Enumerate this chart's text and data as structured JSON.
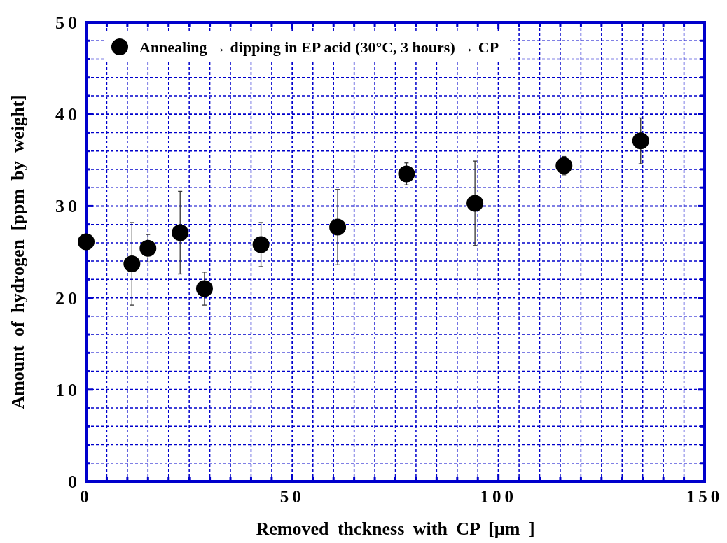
{
  "chart_data": {
    "type": "scatter",
    "xlabel": "Removed thckness with CP [µm ]",
    "ylabel": "Amount of hydrogen [ppm by weight]",
    "xlim": [
      0,
      150
    ],
    "ylim": [
      0,
      50
    ],
    "xticks": [
      0,
      {
        "value": 5,
        "label": null
      },
      {
        "value": 10,
        "label": null
      },
      {
        "value": 15,
        "label": null
      },
      {
        "value": 20,
        "label": null
      },
      {
        "value": 25,
        "label": null
      },
      {
        "value": 30,
        "label": null
      },
      {
        "value": 35,
        "label": null
      },
      {
        "value": 40,
        "label": null
      },
      {
        "value": 45,
        "label": null
      },
      50,
      {
        "value": 55,
        "label": null
      },
      {
        "value": 60,
        "label": null
      },
      {
        "value": 65,
        "label": null
      },
      {
        "value": 70,
        "label": null
      },
      {
        "value": 75,
        "label": null
      },
      {
        "value": 80,
        "label": null
      },
      {
        "value": 85,
        "label": null
      },
      {
        "value": 90,
        "label": null
      },
      {
        "value": 95,
        "label": null
      },
      100,
      {
        "value": 105,
        "label": null
      },
      {
        "value": 110,
        "label": null
      },
      {
        "value": 115,
        "label": null
      },
      {
        "value": 120,
        "label": null
      },
      {
        "value": 125,
        "label": null
      },
      {
        "value": 130,
        "label": null
      },
      {
        "value": 135,
        "label": null
      },
      {
        "value": 140,
        "label": null
      },
      {
        "value": 145,
        "label": null
      },
      150
    ],
    "yticks": [
      0,
      {
        "value": 2,
        "label": null
      },
      {
        "value": 4,
        "label": null
      },
      {
        "value": 6,
        "label": null
      },
      {
        "value": 8,
        "label": null
      },
      10,
      {
        "value": 12,
        "label": null
      },
      {
        "value": 14,
        "label": null
      },
      {
        "value": 16,
        "label": null
      },
      {
        "value": 18,
        "label": null
      },
      20,
      {
        "value": 22,
        "label": null
      },
      {
        "value": 24,
        "label": null
      },
      {
        "value": 26,
        "label": null
      },
      {
        "value": 28,
        "label": null
      },
      30,
      {
        "value": 32,
        "label": null
      },
      {
        "value": 34,
        "label": null
      },
      {
        "value": 36,
        "label": null
      },
      {
        "value": 38,
        "label": null
      },
      40,
      {
        "value": 42,
        "label": null
      },
      {
        "value": 44,
        "label": null
      },
      {
        "value": 46,
        "label": null
      },
      {
        "value": 48,
        "label": null
      },
      50
    ],
    "grid": true,
    "legend": "top left",
    "marker": "circle",
    "series": [
      {
        "name": "Annealing → dipping in EP acid (30°C, 3 hours) → CP",
        "color": "#000000",
        "x": [
          0,
          11.1,
          15,
          22.8,
          28.7,
          42.4,
          61,
          77.7,
          94.3,
          115.9,
          134.5
        ],
        "values": [
          26.1,
          23.7,
          25.4,
          27.1,
          21,
          25.8,
          27.7,
          33.5,
          30.3,
          34.4,
          37.1
        ],
        "errors": [
          null,
          4.5,
          1.5,
          4.5,
          1.8,
          2.4,
          4.1,
          1.2,
          4.6,
          1,
          2.5
        ]
      }
    ]
  }
}
